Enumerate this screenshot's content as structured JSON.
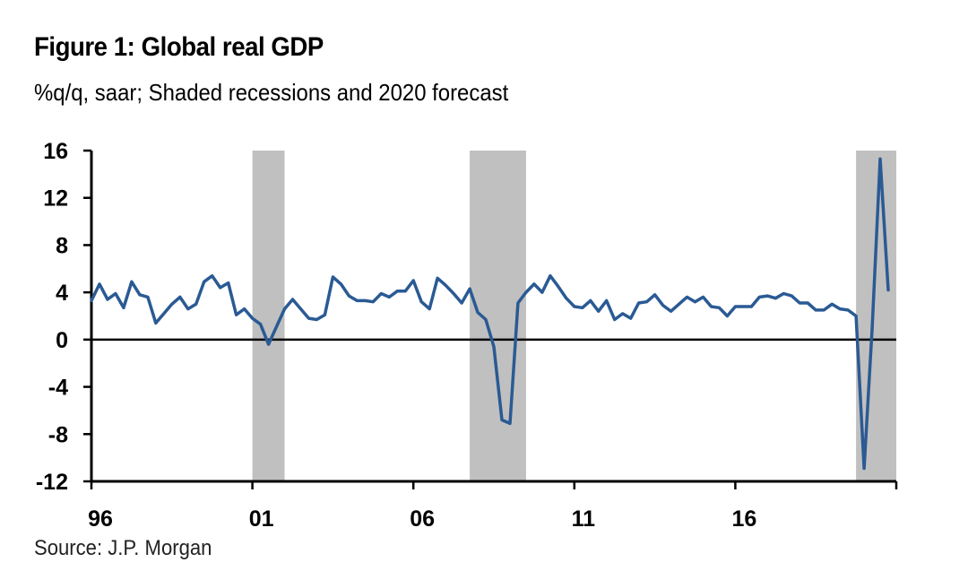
{
  "chart_data": {
    "type": "line",
    "title": "Figure 1: Global real GDP",
    "subtitle": "%q/q, saar; Shaded recessions and 2020 forecast",
    "source": "Source: J.P. Morgan",
    "xlabel": "",
    "ylabel": "",
    "ylim": [
      -12,
      16
    ],
    "yticks": [
      16,
      12,
      8,
      4,
      0,
      -4,
      -8,
      -12
    ],
    "xlim": [
      1996,
      2021
    ],
    "xticks": [
      {
        "value": 1996,
        "label": "96"
      },
      {
        "value": 2001,
        "label": "01"
      },
      {
        "value": 2006,
        "label": "06"
      },
      {
        "value": 2011,
        "label": "11"
      },
      {
        "value": 2016,
        "label": "16"
      },
      {
        "value": 2021,
        "label": ""
      }
    ],
    "grid": false,
    "legend": "none",
    "zero_line": true,
    "recessions": [
      {
        "start": 2001.0,
        "end": 2002.0
      },
      {
        "start": 2007.75,
        "end": 2009.5
      },
      {
        "start": 2019.75,
        "end": 2021.0
      }
    ],
    "series": [
      {
        "name": "Global real GDP",
        "color": "#2a5a94",
        "x_start": 1996.0,
        "x_step": 0.25,
        "values": [
          3.3,
          4.7,
          3.4,
          3.9,
          2.7,
          4.9,
          3.8,
          3.6,
          1.4,
          2.2,
          3.0,
          3.6,
          2.6,
          3.0,
          4.9,
          5.4,
          4.4,
          4.8,
          2.1,
          2.6,
          1.8,
          1.3,
          -0.4,
          1.1,
          2.6,
          3.4,
          2.6,
          1.8,
          1.7,
          2.1,
          5.3,
          4.7,
          3.7,
          3.3,
          3.3,
          3.2,
          3.9,
          3.6,
          4.1,
          4.1,
          5.0,
          3.2,
          2.6,
          5.2,
          4.6,
          3.9,
          3.1,
          4.3,
          2.3,
          1.7,
          -0.6,
          -6.8,
          -7.1,
          3.1,
          4.0,
          4.7,
          4.0,
          5.4,
          4.5,
          3.5,
          2.8,
          2.7,
          3.3,
          2.4,
          3.3,
          1.7,
          2.2,
          1.8,
          3.1,
          3.2,
          3.8,
          2.9,
          2.4,
          3.0,
          3.6,
          3.2,
          3.6,
          2.8,
          2.7,
          2.0,
          2.8,
          2.8,
          2.8,
          3.6,
          3.7,
          3.5,
          3.9,
          3.7,
          3.1,
          3.1,
          2.5,
          2.5,
          3.0,
          2.6,
          2.5,
          2.0,
          -10.9,
          1.0,
          15.3,
          4.2
        ]
      }
    ]
  }
}
